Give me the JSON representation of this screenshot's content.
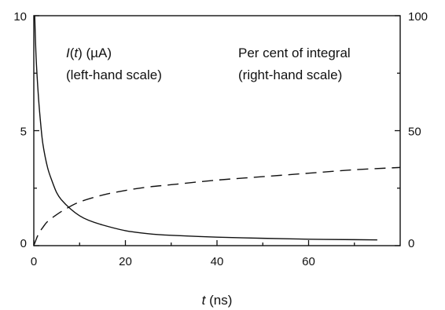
{
  "chart_data": {
    "type": "line",
    "title": "",
    "xlabel": "t (ns)",
    "xlim": [
      0,
      80
    ],
    "x_ticks": [
      0,
      20,
      40,
      60
    ],
    "x_tick_labels": [
      "0",
      "20",
      "40",
      "60"
    ],
    "ylim_left": [
      0,
      10
    ],
    "left_ticks": [
      0,
      5,
      10
    ],
    "left_tick_labels": [
      "0",
      "5",
      "10"
    ],
    "ylim_right": [
      0,
      100
    ],
    "right_ticks": [
      0,
      50,
      100
    ],
    "right_tick_labels": [
      "0",
      "50",
      "100"
    ],
    "grid": false,
    "legend": "none",
    "annotations": [
      {
        "line1": "I(t) (µA)",
        "line2": "(left-hand scale)"
      },
      {
        "line1": "Per cent of integral",
        "line2": "(right-hand scale)"
      }
    ],
    "series": [
      {
        "axis": "left",
        "style": "solid",
        "x": [
          0.2,
          0.5,
          1,
          1.5,
          2,
          3,
          4,
          5,
          6,
          8,
          10,
          12,
          15,
          20,
          25,
          30,
          40,
          50,
          60,
          70,
          75
        ],
        "values": [
          10,
          8.2,
          6.5,
          5.3,
          4.4,
          3.4,
          2.8,
          2.3,
          2.0,
          1.6,
          1.3,
          1.1,
          0.9,
          0.65,
          0.52,
          0.45,
          0.37,
          0.32,
          0.28,
          0.26,
          0.25
        ]
      },
      {
        "axis": "right",
        "style": "dashed",
        "x": [
          0,
          1,
          2,
          3,
          5,
          7,
          10,
          15,
          20,
          25,
          30,
          40,
          50,
          60,
          70,
          80
        ],
        "values": [
          0,
          5,
          8,
          10.5,
          13.5,
          16,
          19,
          22,
          24,
          25.5,
          26.5,
          28.5,
          30,
          31.5,
          33,
          34
        ]
      }
    ]
  }
}
